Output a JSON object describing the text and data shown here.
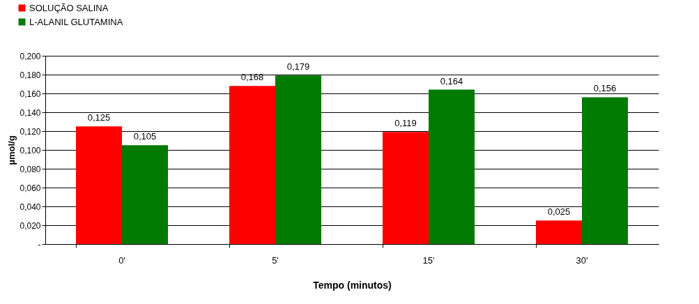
{
  "chart_data": {
    "type": "bar",
    "xlabel": "Tempo (minutos)",
    "ylabel": "µmol/g",
    "categories": [
      "0'",
      "5'",
      "15'",
      "30'"
    ],
    "series": [
      {
        "name": "SOLUÇÃO SALINA",
        "color": "#ff0000",
        "values": [
          0.125,
          0.168,
          0.119,
          0.025
        ]
      },
      {
        "name": "L-ALANIL GLUTAMINA",
        "color": "#007a00",
        "values": [
          0.105,
          0.179,
          0.164,
          0.156
        ]
      }
    ],
    "ylim": [
      0,
      0.2
    ],
    "yticks": [
      {
        "value": 0,
        "label": "-"
      },
      {
        "value": 0.02,
        "label": "0,020"
      },
      {
        "value": 0.04,
        "label": "0,040"
      },
      {
        "value": 0.06,
        "label": "0,060"
      },
      {
        "value": 0.08,
        "label": "0,080"
      },
      {
        "value": 0.1,
        "label": "0,100"
      },
      {
        "value": 0.12,
        "label": "0,120"
      },
      {
        "value": 0.14,
        "label": "0,140"
      },
      {
        "value": 0.16,
        "label": "0,160"
      },
      {
        "value": 0.18,
        "label": "0,180"
      },
      {
        "value": 0.2,
        "label": "0,200"
      }
    ],
    "value_labels": [
      [
        "0,125",
        "0,168",
        "0,119",
        "0,025"
      ],
      [
        "0,105",
        "0,179",
        "0,164",
        "0,156"
      ]
    ],
    "grid": "y",
    "legend": "top left"
  }
}
